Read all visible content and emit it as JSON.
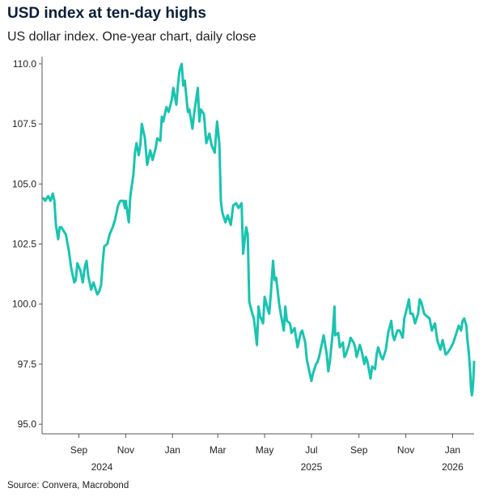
{
  "title": "USD index at ten-day highs",
  "subtitle": "US dollar index. One-year chart, daily close",
  "source": "Source: Convera, Macrobond",
  "colors": {
    "line": "#18c4b0",
    "axis": "#555555",
    "text": "#222222",
    "title": "#0b1f3a"
  },
  "chart_data": {
    "type": "line",
    "title": "USD index at ten-day highs",
    "subtitle": "US dollar index. One-year chart, daily close",
    "x_ticks": [
      {
        "label": "Sep",
        "date": "2024-09-01"
      },
      {
        "label": "Nov",
        "date": "2024-11-01"
      },
      {
        "label": "Jan",
        "date": "2025-01-01"
      },
      {
        "label": "Mar",
        "date": "2025-03-01"
      },
      {
        "label": "May",
        "date": "2025-05-01"
      },
      {
        "label": "Jul",
        "date": "2025-07-01"
      },
      {
        "label": "Sep",
        "date": "2025-09-01"
      },
      {
        "label": "Nov",
        "date": "2025-11-01"
      },
      {
        "label": "Jan",
        "date": "2026-01-01"
      }
    ],
    "year_labels": [
      {
        "label": "2024",
        "date": "2024-10-01"
      },
      {
        "label": "2025",
        "date": "2025-07-01"
      },
      {
        "label": "2026",
        "date": "2026-01-01"
      }
    ],
    "y_ticks": [
      {
        "label": "95.0",
        "value": 95
      },
      {
        "label": "97.5",
        "value": 97.5
      },
      {
        "label": "100.0",
        "value": 100
      },
      {
        "label": "102.5",
        "value": 102.5
      },
      {
        "label": "105.0",
        "value": 105
      },
      {
        "label": "107.5",
        "value": 107.5
      },
      {
        "label": "110.0",
        "value": 110
      }
    ],
    "xlim": [
      "2024-07-15",
      "2026-01-29"
    ],
    "ylim": [
      94.6,
      110.3
    ],
    "grid": false,
    "series": [
      {
        "name": "",
        "points": [
          [
            "2024-07-17",
            104.4
          ],
          [
            "2024-07-19",
            104.3
          ],
          [
            "2024-07-23",
            104.5
          ],
          [
            "2024-07-26",
            104.3
          ],
          [
            "2024-07-29",
            104.6
          ],
          [
            "2024-07-31",
            104.3
          ],
          [
            "2024-08-02",
            103.3
          ],
          [
            "2024-08-05",
            102.7
          ],
          [
            "2024-08-07",
            103.2
          ],
          [
            "2024-08-09",
            103.2
          ],
          [
            "2024-08-13",
            103.0
          ],
          [
            "2024-08-15",
            102.9
          ],
          [
            "2024-08-19",
            102.2
          ],
          [
            "2024-08-22",
            101.5
          ],
          [
            "2024-08-26",
            100.9
          ],
          [
            "2024-08-28",
            101.0
          ],
          [
            "2024-08-30",
            101.7
          ],
          [
            "2024-09-03",
            101.4
          ],
          [
            "2024-09-06",
            100.9
          ],
          [
            "2024-09-09",
            101.6
          ],
          [
            "2024-09-11",
            101.8
          ],
          [
            "2024-09-13",
            101.2
          ],
          [
            "2024-09-17",
            100.6
          ],
          [
            "2024-09-20",
            100.9
          ],
          [
            "2024-09-25",
            100.4
          ],
          [
            "2024-09-27",
            100.5
          ],
          [
            "2024-09-30",
            100.8
          ],
          [
            "2024-10-02",
            101.7
          ],
          [
            "2024-10-04",
            102.4
          ],
          [
            "2024-10-08",
            102.5
          ],
          [
            "2024-10-11",
            102.9
          ],
          [
            "2024-10-15",
            103.2
          ],
          [
            "2024-10-18",
            103.5
          ],
          [
            "2024-10-22",
            104.1
          ],
          [
            "2024-10-25",
            104.3
          ],
          [
            "2024-10-29",
            104.3
          ],
          [
            "2024-10-31",
            104.0
          ],
          [
            "2024-11-01",
            104.3
          ],
          [
            "2024-11-05",
            103.4
          ],
          [
            "2024-11-07",
            104.5
          ],
          [
            "2024-11-11",
            105.4
          ],
          [
            "2024-11-13",
            106.3
          ],
          [
            "2024-11-15",
            106.7
          ],
          [
            "2024-11-18",
            106.2
          ],
          [
            "2024-11-20",
            106.6
          ],
          [
            "2024-11-22",
            107.5
          ],
          [
            "2024-11-26",
            106.9
          ],
          [
            "2024-11-29",
            105.8
          ],
          [
            "2024-12-03",
            106.4
          ],
          [
            "2024-12-06",
            106.0
          ],
          [
            "2024-12-10",
            106.5
          ],
          [
            "2024-12-12",
            106.9
          ],
          [
            "2024-12-16",
            106.8
          ],
          [
            "2024-12-18",
            107.8
          ],
          [
            "2024-12-20",
            107.6
          ],
          [
            "2024-12-24",
            108.2
          ],
          [
            "2024-12-27",
            108.0
          ],
          [
            "2024-12-31",
            108.5
          ],
          [
            "2025-01-02",
            109.0
          ],
          [
            "2025-01-06",
            108.3
          ],
          [
            "2025-01-08",
            109.1
          ],
          [
            "2025-01-10",
            109.7
          ],
          [
            "2025-01-13",
            110.0
          ],
          [
            "2025-01-15",
            109.1
          ],
          [
            "2025-01-17",
            109.3
          ],
          [
            "2025-01-21",
            108.0
          ],
          [
            "2025-01-23",
            108.1
          ],
          [
            "2025-01-27",
            107.3
          ],
          [
            "2025-01-29",
            107.9
          ],
          [
            "2025-02-03",
            109.0
          ],
          [
            "2025-02-05",
            107.6
          ],
          [
            "2025-02-07",
            108.1
          ],
          [
            "2025-02-11",
            107.9
          ],
          [
            "2025-02-14",
            106.7
          ],
          [
            "2025-02-18",
            107.1
          ],
          [
            "2025-02-21",
            106.6
          ],
          [
            "2025-02-25",
            106.3
          ],
          [
            "2025-02-28",
            107.6
          ],
          [
            "2025-03-03",
            106.7
          ],
          [
            "2025-03-05",
            104.3
          ],
          [
            "2025-03-07",
            103.8
          ],
          [
            "2025-03-11",
            103.4
          ],
          [
            "2025-03-14",
            103.7
          ],
          [
            "2025-03-18",
            103.3
          ],
          [
            "2025-03-21",
            104.1
          ],
          [
            "2025-03-25",
            104.2
          ],
          [
            "2025-03-28",
            104.0
          ],
          [
            "2025-04-01",
            104.2
          ],
          [
            "2025-04-03",
            102.1
          ],
          [
            "2025-04-07",
            103.2
          ],
          [
            "2025-04-09",
            102.9
          ],
          [
            "2025-04-11",
            100.1
          ],
          [
            "2025-04-15",
            99.6
          ],
          [
            "2025-04-17",
            99.4
          ],
          [
            "2025-04-21",
            98.3
          ],
          [
            "2025-04-23",
            99.9
          ],
          [
            "2025-04-25",
            99.5
          ],
          [
            "2025-04-29",
            99.2
          ],
          [
            "2025-05-01",
            100.3
          ],
          [
            "2025-05-05",
            99.8
          ],
          [
            "2025-05-07",
            99.6
          ],
          [
            "2025-05-09",
            100.4
          ],
          [
            "2025-05-12",
            101.8
          ],
          [
            "2025-05-14",
            101.0
          ],
          [
            "2025-05-16",
            101.1
          ],
          [
            "2025-05-20",
            100.0
          ],
          [
            "2025-05-22",
            99.6
          ],
          [
            "2025-05-26",
            98.9
          ],
          [
            "2025-05-28",
            99.9
          ],
          [
            "2025-05-30",
            99.3
          ],
          [
            "2025-06-03",
            99.2
          ],
          [
            "2025-06-05",
            98.8
          ],
          [
            "2025-06-09",
            99.0
          ],
          [
            "2025-06-11",
            98.6
          ],
          [
            "2025-06-13",
            98.2
          ],
          [
            "2025-06-17",
            98.8
          ],
          [
            "2025-06-19",
            98.9
          ],
          [
            "2025-06-23",
            98.4
          ],
          [
            "2025-06-25",
            97.7
          ],
          [
            "2025-06-27",
            97.4
          ],
          [
            "2025-07-01",
            96.8
          ],
          [
            "2025-07-03",
            97.1
          ],
          [
            "2025-07-07",
            97.5
          ],
          [
            "2025-07-09",
            97.6
          ],
          [
            "2025-07-11",
            97.8
          ],
          [
            "2025-07-15",
            98.4
          ],
          [
            "2025-07-17",
            98.7
          ],
          [
            "2025-07-21",
            97.9
          ],
          [
            "2025-07-23",
            97.2
          ],
          [
            "2025-07-25",
            97.6
          ],
          [
            "2025-07-29",
            98.9
          ],
          [
            "2025-07-31",
            99.9
          ],
          [
            "2025-08-01",
            98.7
          ],
          [
            "2025-08-05",
            98.8
          ],
          [
            "2025-08-07",
            98.2
          ],
          [
            "2025-08-11",
            98.4
          ],
          [
            "2025-08-13",
            97.8
          ],
          [
            "2025-08-15",
            97.9
          ],
          [
            "2025-08-19",
            98.3
          ],
          [
            "2025-08-21",
            98.6
          ],
          [
            "2025-08-25",
            98.4
          ],
          [
            "2025-08-27",
            98.2
          ],
          [
            "2025-08-29",
            97.8
          ],
          [
            "2025-09-02",
            98.3
          ],
          [
            "2025-09-04",
            98.1
          ],
          [
            "2025-09-08",
            97.5
          ],
          [
            "2025-09-10",
            97.8
          ],
          [
            "2025-09-12",
            97.6
          ],
          [
            "2025-09-16",
            96.9
          ],
          [
            "2025-09-18",
            97.4
          ],
          [
            "2025-09-22",
            97.3
          ],
          [
            "2025-09-24",
            97.9
          ],
          [
            "2025-09-26",
            98.2
          ],
          [
            "2025-09-30",
            97.8
          ],
          [
            "2025-10-02",
            97.7
          ],
          [
            "2025-10-06",
            98.1
          ],
          [
            "2025-10-09",
            98.8
          ],
          [
            "2025-10-13",
            99.3
          ],
          [
            "2025-10-15",
            98.7
          ],
          [
            "2025-10-17",
            98.5
          ],
          [
            "2025-10-21",
            98.9
          ],
          [
            "2025-10-24",
            98.9
          ],
          [
            "2025-10-28",
            98.6
          ],
          [
            "2025-10-30",
            99.4
          ],
          [
            "2025-11-03",
            99.9
          ],
          [
            "2025-11-05",
            100.2
          ],
          [
            "2025-11-07",
            99.6
          ],
          [
            "2025-11-10",
            99.6
          ],
          [
            "2025-11-13",
            99.2
          ],
          [
            "2025-11-17",
            99.6
          ],
          [
            "2025-11-19",
            100.2
          ],
          [
            "2025-11-21",
            100.1
          ],
          [
            "2025-11-25",
            99.6
          ],
          [
            "2025-11-28",
            99.5
          ],
          [
            "2025-12-02",
            99.4
          ],
          [
            "2025-12-05",
            98.9
          ],
          [
            "2025-12-09",
            99.2
          ],
          [
            "2025-12-12",
            98.5
          ],
          [
            "2025-12-16",
            98.1
          ],
          [
            "2025-12-19",
            98.5
          ],
          [
            "2025-12-23",
            97.9
          ],
          [
            "2025-12-26",
            98.0
          ],
          [
            "2025-12-30",
            98.2
          ],
          [
            "2026-01-02",
            98.4
          ],
          [
            "2026-01-05",
            98.7
          ],
          [
            "2026-01-07",
            98.9
          ],
          [
            "2026-01-09",
            99.1
          ],
          [
            "2026-01-12",
            98.9
          ],
          [
            "2026-01-14",
            99.3
          ],
          [
            "2026-01-16",
            99.4
          ],
          [
            "2026-01-19",
            99.1
          ],
          [
            "2026-01-20",
            98.6
          ],
          [
            "2026-01-21",
            98.3
          ],
          [
            "2026-01-22",
            98.0
          ],
          [
            "2026-01-23",
            97.6
          ],
          [
            "2026-01-24",
            97.1
          ],
          [
            "2026-01-25",
            96.5
          ],
          [
            "2026-01-26",
            96.2
          ],
          [
            "2026-01-27",
            96.4
          ],
          [
            "2026-01-28",
            96.9
          ],
          [
            "2026-01-29",
            97.6
          ]
        ]
      }
    ]
  }
}
